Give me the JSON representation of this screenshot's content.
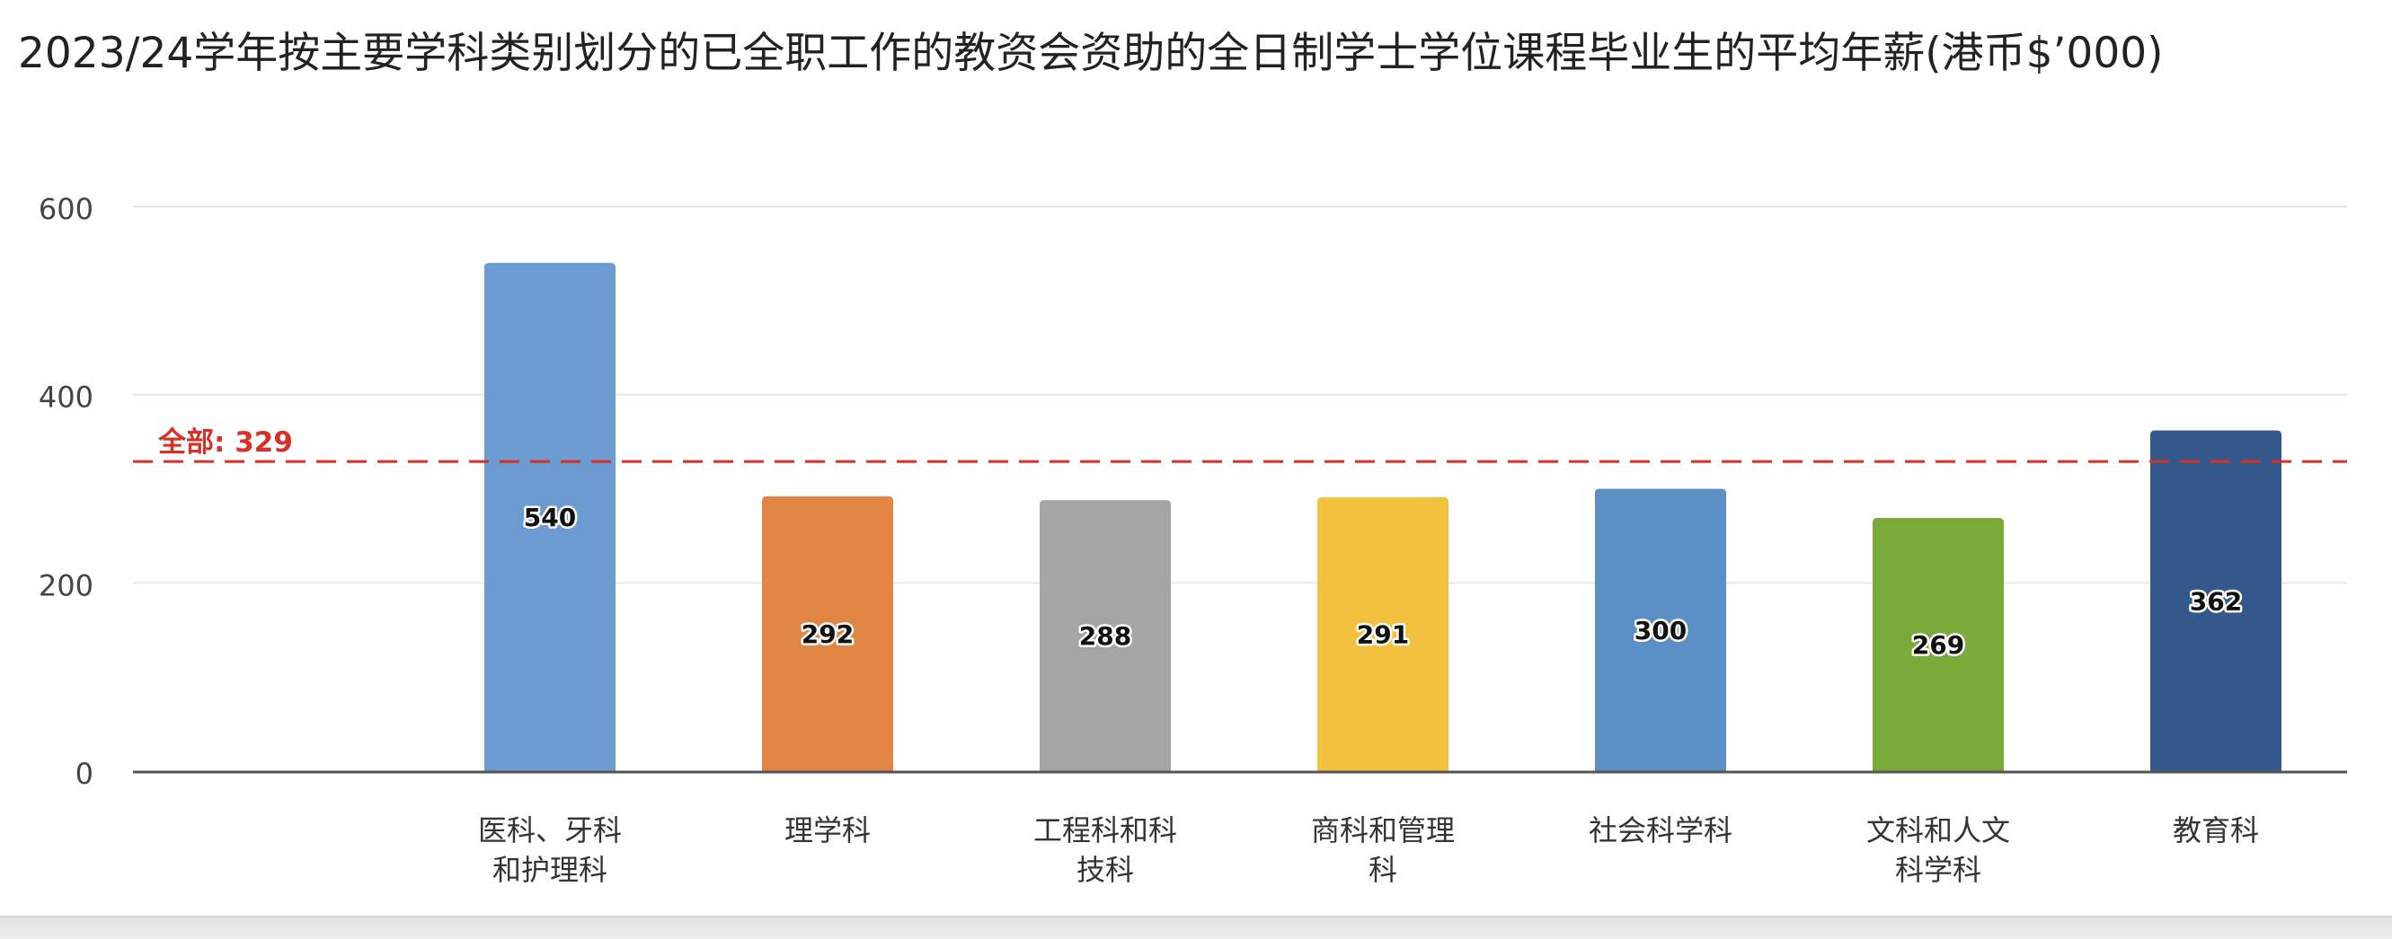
{
  "title": "2023/24学年按主要学科类别划分的已全职工作的教资会资助的全日制学士学位课程毕业生的平均年薪(港币$’000)",
  "chart_data": {
    "type": "bar",
    "title": "2023/24学年按主要学科类别划分的已全职工作的教资会资助的全日制学士学位课程毕业生的平均年薪(港币$’000)",
    "categories": [
      [
        "医科、牙科",
        "和护理科"
      ],
      [
        "理学科"
      ],
      [
        "工程科和科",
        "技科"
      ],
      [
        "商科和管理",
        "科"
      ],
      [
        "社会科学科"
      ],
      [
        "文科和人文",
        "科学科"
      ],
      [
        "教育科"
      ]
    ],
    "values": [
      540,
      292,
      288,
      291,
      300,
      269,
      362
    ],
    "colors": [
      "#6b9bd1",
      "#e08544",
      "#a5a5a5",
      "#f2c13d",
      "#5b8fc6",
      "#7aab3a",
      "#33598c"
    ],
    "data_labels": [
      "540",
      "292",
      "288",
      "291",
      "300",
      "269",
      "362"
    ],
    "ylim": [
      0,
      600
    ],
    "yticks": [
      0,
      200,
      400,
      600
    ],
    "xlabel": "",
    "ylabel": "",
    "grid": true,
    "legend": "none",
    "reference_line": {
      "value": 329,
      "label": "全部: 329",
      "color": "#d93025",
      "style": "dashed"
    }
  }
}
